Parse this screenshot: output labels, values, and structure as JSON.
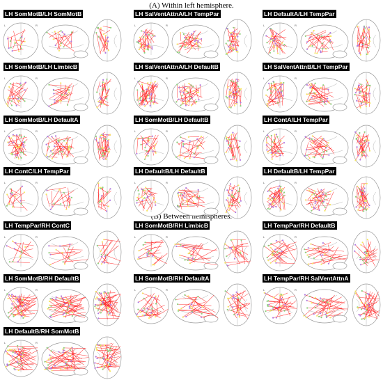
{
  "sections": [
    {
      "title": "(A) Within left hemisphere.",
      "panels": [
        {
          "label": "LH SomMotB/LH SomMotB",
          "density": 14,
          "pattern": "local"
        },
        {
          "label": "LH SalVentAttnA/LH TempPar",
          "density": 26,
          "pattern": "mid"
        },
        {
          "label": "LH DefaultA/LH TempPar",
          "density": 22,
          "pattern": "mid"
        },
        {
          "label": "LH SomMotB/LH LimbicB",
          "density": 20,
          "pattern": "mid"
        },
        {
          "label": "LH SalVentAttnA/LH DefaultB",
          "density": 32,
          "pattern": "dense"
        },
        {
          "label": "LH SalVentAttnB/LH TempPar",
          "density": 28,
          "pattern": "dense"
        },
        {
          "label": "LH SomMotB/LH DefaultA",
          "density": 32,
          "pattern": "dense"
        },
        {
          "label": "LH SomMotB/LH DefaultB",
          "density": 20,
          "pattern": "mid"
        },
        {
          "label": "LH ContA/LH TempPar",
          "density": 24,
          "pattern": "mid"
        },
        {
          "label": "LH ContC/LH TempPar",
          "density": 14,
          "pattern": "local"
        },
        {
          "label": "LH DefaultB/LH DefaultB",
          "density": 22,
          "pattern": "mid"
        },
        {
          "label": "LH DefaultB/LH TempPar",
          "density": 28,
          "pattern": "dense"
        }
      ]
    },
    {
      "title": "(B) Between hemispheres.",
      "panels": [
        {
          "label": "LH TempPar/RH ContC",
          "density": 12,
          "pattern": "cross"
        },
        {
          "label": "LH SomMotB/RH LimbicB",
          "density": 16,
          "pattern": "cross"
        },
        {
          "label": "LH TempPar/RH DefaultB",
          "density": 20,
          "pattern": "cross"
        },
        {
          "label": "LH SomMotB/RH DefaultB",
          "density": 34,
          "pattern": "cross"
        },
        {
          "label": "LH SomMotB/RH DefaultA",
          "density": 22,
          "pattern": "cross"
        },
        {
          "label": "LH TempPar/RH SalVentAttnA",
          "density": 26,
          "pattern": "cross"
        },
        {
          "label": "LH DefaultB/RH SomMotB",
          "density": 34,
          "pattern": "cross"
        }
      ]
    }
  ],
  "hemisphere_marks": {
    "left": "L",
    "right": "R"
  },
  "node_colors": [
    "#f5e663",
    "#57c7c9",
    "#8bd17c",
    "#e6a13c",
    "#b07be0",
    "#f08acb"
  ],
  "edge_color": "#ff1f1f"
}
